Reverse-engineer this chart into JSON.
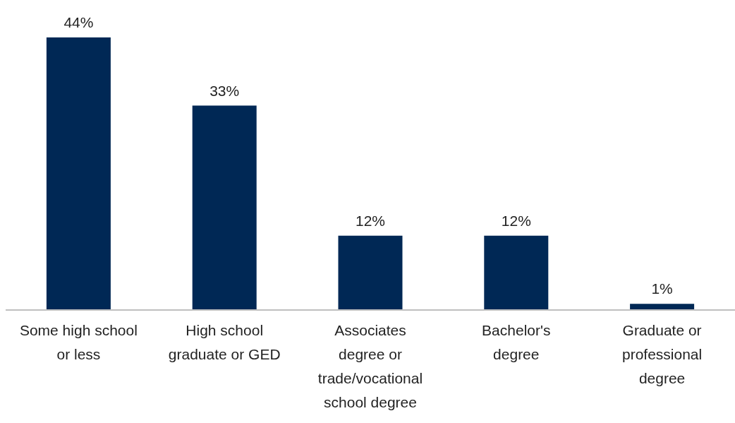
{
  "chart_data": {
    "type": "bar",
    "categories": [
      "Some high school or less",
      "High school graduate or GED",
      "Associates degree or trade/vocational school degree",
      "Bachelor's degree",
      "Graduate or professional degree"
    ],
    "values": [
      44,
      33,
      12,
      12,
      1
    ],
    "value_labels": [
      "44%",
      "33%",
      "12%",
      "12%",
      "1%"
    ],
    "color": "#002855"
  }
}
